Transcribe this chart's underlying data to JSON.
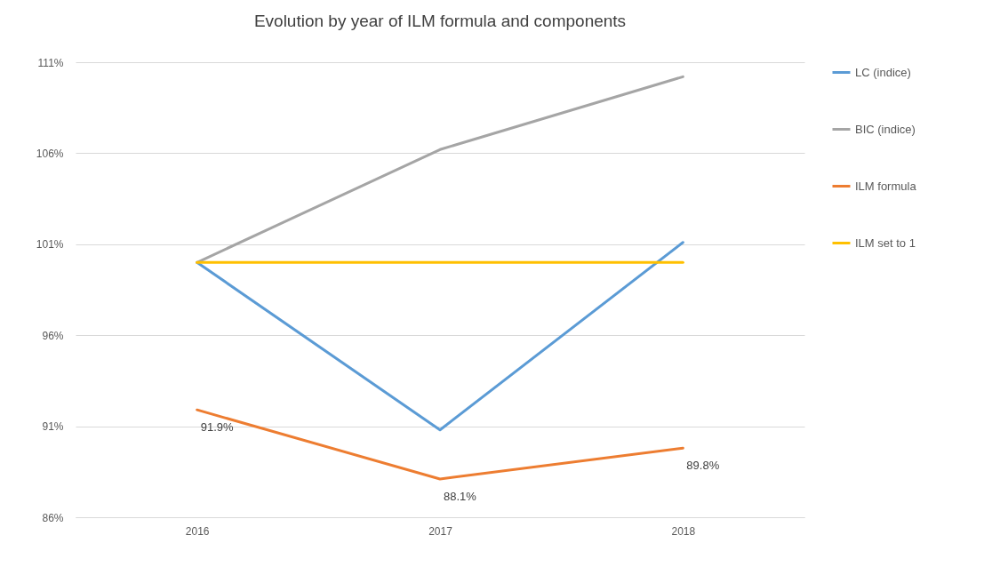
{
  "chart_data": {
    "type": "line",
    "title": "Evolution by year of ILM formula and components",
    "categories": [
      "2016",
      "2017",
      "2018"
    ],
    "series": [
      {
        "name": "LC (indice)",
        "color": "#5b9bd5",
        "values": [
          100,
          90.8,
          101.1
        ]
      },
      {
        "name": "BIC (indice)",
        "color": "#a5a5a5",
        "values": [
          100,
          106.2,
          110.2
        ]
      },
      {
        "name": "ILM formula",
        "color": "#ed7d31",
        "values": [
          91.9,
          88.1,
          89.8
        ],
        "value_labels": [
          "91.9%",
          "88.1%",
          "89.8%"
        ]
      },
      {
        "name": "ILM set to 1",
        "color": "#ffc000",
        "values": [
          100,
          100,
          100
        ]
      }
    ],
    "ylim": [
      86,
      111
    ],
    "yticks": [
      {
        "value": 86,
        "label": "86%"
      },
      {
        "value": 91,
        "label": "91%"
      },
      {
        "value": 96,
        "label": "96%"
      },
      {
        "value": 101,
        "label": "101%"
      },
      {
        "value": 106,
        "label": "106%"
      },
      {
        "value": 111,
        "label": "111%"
      }
    ],
    "grid": "y",
    "legend": "right",
    "line_style": "solid"
  }
}
